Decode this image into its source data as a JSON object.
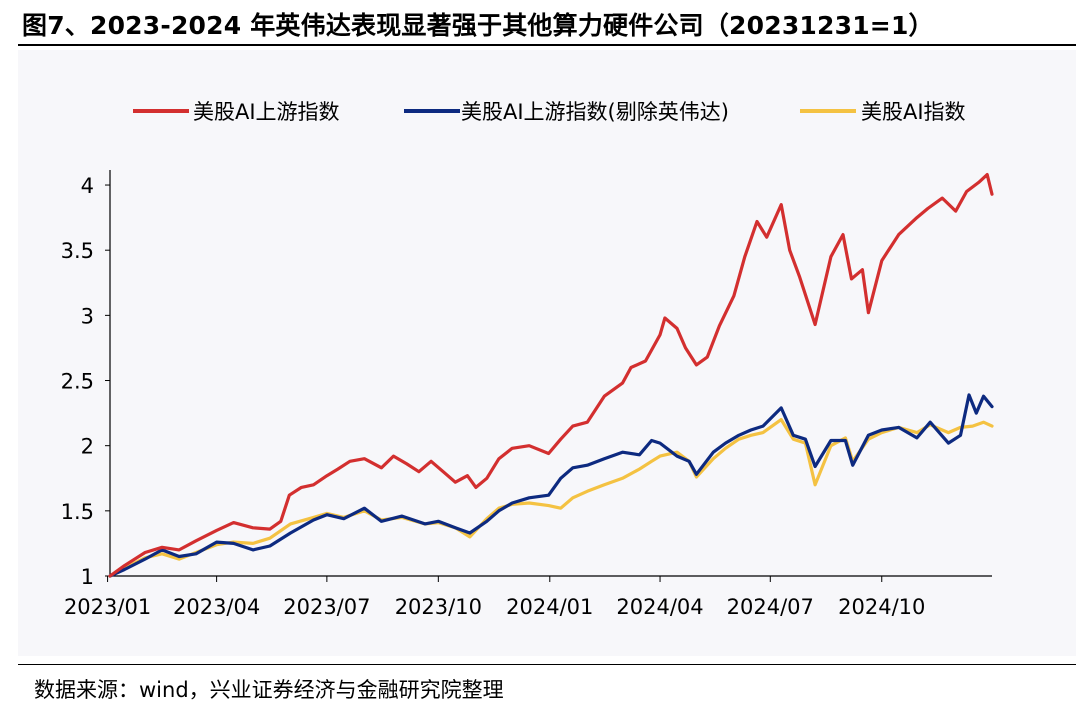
{
  "title": "图7、2023-2024 年英伟达表现显著强于其他算力硬件公司（20231231=1）",
  "source": "数据来源：wind，兴业证券经济与金融研究院整理",
  "chart_data": {
    "type": "line",
    "x_ticks": [
      "2023/01",
      "2023/04",
      "2023/07",
      "2023/10",
      "2024/01",
      "2024/04",
      "2024/07",
      "2024/10"
    ],
    "y_ticks": [
      "1",
      "1.5",
      "2",
      "2.5",
      "3",
      "3.5",
      "4"
    ],
    "ylim": [
      1,
      4.1
    ],
    "xlim": [
      "2023-01-03",
      "2024-12-31"
    ],
    "grid": false,
    "legend_position": "top",
    "series": [
      {
        "name": "美股AI上游指数",
        "color": "#d32f2f",
        "points": [
          [
            "2023-01-03",
            1.0
          ],
          [
            "2023-01-15",
            1.08
          ],
          [
            "2023-02-01",
            1.18
          ],
          [
            "2023-02-15",
            1.22
          ],
          [
            "2023-03-01",
            1.2
          ],
          [
            "2023-03-15",
            1.27
          ],
          [
            "2023-04-01",
            1.35
          ],
          [
            "2023-04-15",
            1.41
          ],
          [
            "2023-05-01",
            1.37
          ],
          [
            "2023-05-15",
            1.36
          ],
          [
            "2023-05-24",
            1.42
          ],
          [
            "2023-05-31",
            1.62
          ],
          [
            "2023-06-10",
            1.68
          ],
          [
            "2023-06-20",
            1.7
          ],
          [
            "2023-07-01",
            1.77
          ],
          [
            "2023-07-10",
            1.82
          ],
          [
            "2023-07-20",
            1.88
          ],
          [
            "2023-08-01",
            1.9
          ],
          [
            "2023-08-15",
            1.83
          ],
          [
            "2023-08-25",
            1.92
          ],
          [
            "2023-09-05",
            1.86
          ],
          [
            "2023-09-15",
            1.8
          ],
          [
            "2023-09-25",
            1.88
          ],
          [
            "2023-10-05",
            1.8
          ],
          [
            "2023-10-15",
            1.72
          ],
          [
            "2023-10-25",
            1.77
          ],
          [
            "2023-11-01",
            1.68
          ],
          [
            "2023-11-10",
            1.75
          ],
          [
            "2023-11-20",
            1.9
          ],
          [
            "2023-12-01",
            1.98
          ],
          [
            "2023-12-15",
            2.0
          ],
          [
            "2023-12-31",
            1.94
          ],
          [
            "2024-01-10",
            2.05
          ],
          [
            "2024-01-20",
            2.15
          ],
          [
            "2024-02-01",
            2.18
          ],
          [
            "2024-02-15",
            2.38
          ],
          [
            "2024-03-01",
            2.48
          ],
          [
            "2024-03-08",
            2.6
          ],
          [
            "2024-03-20",
            2.65
          ],
          [
            "2024-04-01",
            2.85
          ],
          [
            "2024-04-05",
            2.98
          ],
          [
            "2024-04-15",
            2.9
          ],
          [
            "2024-04-22",
            2.75
          ],
          [
            "2024-05-01",
            2.62
          ],
          [
            "2024-05-10",
            2.68
          ],
          [
            "2024-05-20",
            2.92
          ],
          [
            "2024-06-01",
            3.15
          ],
          [
            "2024-06-10",
            3.45
          ],
          [
            "2024-06-20",
            3.72
          ],
          [
            "2024-06-28",
            3.6
          ],
          [
            "2024-07-10",
            3.85
          ],
          [
            "2024-07-17",
            3.5
          ],
          [
            "2024-07-25",
            3.3
          ],
          [
            "2024-08-07",
            2.93
          ],
          [
            "2024-08-20",
            3.45
          ],
          [
            "2024-08-30",
            3.62
          ],
          [
            "2024-09-06",
            3.28
          ],
          [
            "2024-09-15",
            3.35
          ],
          [
            "2024-09-20",
            3.02
          ],
          [
            "2024-10-01",
            3.42
          ],
          [
            "2024-10-15",
            3.62
          ],
          [
            "2024-10-30",
            3.75
          ],
          [
            "2024-11-08",
            3.82
          ],
          [
            "2024-11-20",
            3.9
          ],
          [
            "2024-12-01",
            3.8
          ],
          [
            "2024-12-10",
            3.95
          ],
          [
            "2024-12-20",
            4.02
          ],
          [
            "2024-12-27",
            4.08
          ],
          [
            "2024-12-31",
            3.93
          ]
        ]
      },
      {
        "name": "美股AI上游指数(剔除英伟达)",
        "color": "#0d2a80",
        "points": [
          [
            "2023-01-03",
            1.0
          ],
          [
            "2023-01-15",
            1.05
          ],
          [
            "2023-02-01",
            1.13
          ],
          [
            "2023-02-15",
            1.2
          ],
          [
            "2023-03-01",
            1.15
          ],
          [
            "2023-03-15",
            1.17
          ],
          [
            "2023-04-01",
            1.26
          ],
          [
            "2023-04-15",
            1.25
          ],
          [
            "2023-05-01",
            1.2
          ],
          [
            "2023-05-15",
            1.23
          ],
          [
            "2023-06-01",
            1.33
          ],
          [
            "2023-06-20",
            1.43
          ],
          [
            "2023-07-01",
            1.47
          ],
          [
            "2023-07-15",
            1.44
          ],
          [
            "2023-08-01",
            1.52
          ],
          [
            "2023-08-15",
            1.42
          ],
          [
            "2023-09-01",
            1.46
          ],
          [
            "2023-09-20",
            1.4
          ],
          [
            "2023-10-01",
            1.42
          ],
          [
            "2023-10-15",
            1.37
          ],
          [
            "2023-10-27",
            1.33
          ],
          [
            "2023-11-10",
            1.42
          ],
          [
            "2023-11-20",
            1.5
          ],
          [
            "2023-12-01",
            1.56
          ],
          [
            "2023-12-15",
            1.6
          ],
          [
            "2023-12-31",
            1.62
          ],
          [
            "2024-01-10",
            1.75
          ],
          [
            "2024-01-20",
            1.83
          ],
          [
            "2024-02-01",
            1.85
          ],
          [
            "2024-02-15",
            1.9
          ],
          [
            "2024-03-01",
            1.95
          ],
          [
            "2024-03-15",
            1.93
          ],
          [
            "2024-03-25",
            2.04
          ],
          [
            "2024-04-01",
            2.02
          ],
          [
            "2024-04-15",
            1.92
          ],
          [
            "2024-04-25",
            1.88
          ],
          [
            "2024-05-01",
            1.78
          ],
          [
            "2024-05-15",
            1.95
          ],
          [
            "2024-05-25",
            2.02
          ],
          [
            "2024-06-05",
            2.08
          ],
          [
            "2024-06-15",
            2.12
          ],
          [
            "2024-06-25",
            2.15
          ],
          [
            "2024-07-10",
            2.29
          ],
          [
            "2024-07-20",
            2.08
          ],
          [
            "2024-07-30",
            2.05
          ],
          [
            "2024-08-07",
            1.84
          ],
          [
            "2024-08-20",
            2.04
          ],
          [
            "2024-09-01",
            2.04
          ],
          [
            "2024-09-07",
            1.85
          ],
          [
            "2024-09-20",
            2.08
          ],
          [
            "2024-10-01",
            2.12
          ],
          [
            "2024-10-15",
            2.14
          ],
          [
            "2024-10-30",
            2.06
          ],
          [
            "2024-11-10",
            2.18
          ],
          [
            "2024-11-25",
            2.02
          ],
          [
            "2024-12-05",
            2.08
          ],
          [
            "2024-12-12",
            2.39
          ],
          [
            "2024-12-18",
            2.25
          ],
          [
            "2024-12-24",
            2.38
          ],
          [
            "2024-12-31",
            2.3
          ]
        ]
      },
      {
        "name": "美股AI指数",
        "color": "#f4c242",
        "points": [
          [
            "2023-01-03",
            1.0
          ],
          [
            "2023-01-15",
            1.06
          ],
          [
            "2023-02-01",
            1.14
          ],
          [
            "2023-02-15",
            1.17
          ],
          [
            "2023-03-01",
            1.13
          ],
          [
            "2023-03-15",
            1.18
          ],
          [
            "2023-04-01",
            1.24
          ],
          [
            "2023-04-15",
            1.26
          ],
          [
            "2023-05-01",
            1.25
          ],
          [
            "2023-05-15",
            1.29
          ],
          [
            "2023-06-01",
            1.4
          ],
          [
            "2023-06-20",
            1.45
          ],
          [
            "2023-07-01",
            1.48
          ],
          [
            "2023-07-15",
            1.45
          ],
          [
            "2023-08-01",
            1.5
          ],
          [
            "2023-08-15",
            1.43
          ],
          [
            "2023-09-01",
            1.45
          ],
          [
            "2023-09-20",
            1.4
          ],
          [
            "2023-10-01",
            1.41
          ],
          [
            "2023-10-15",
            1.37
          ],
          [
            "2023-10-27",
            1.3
          ],
          [
            "2023-11-10",
            1.44
          ],
          [
            "2023-11-20",
            1.52
          ],
          [
            "2023-12-01",
            1.55
          ],
          [
            "2023-12-15",
            1.56
          ],
          [
            "2023-12-31",
            1.54
          ],
          [
            "2024-01-10",
            1.52
          ],
          [
            "2024-01-20",
            1.6
          ],
          [
            "2024-02-01",
            1.65
          ],
          [
            "2024-02-15",
            1.7
          ],
          [
            "2024-03-01",
            1.75
          ],
          [
            "2024-03-15",
            1.82
          ],
          [
            "2024-03-25",
            1.88
          ],
          [
            "2024-04-01",
            1.92
          ],
          [
            "2024-04-15",
            1.95
          ],
          [
            "2024-04-25",
            1.88
          ],
          [
            "2024-05-01",
            1.76
          ],
          [
            "2024-05-15",
            1.9
          ],
          [
            "2024-05-25",
            1.98
          ],
          [
            "2024-06-05",
            2.05
          ],
          [
            "2024-06-15",
            2.08
          ],
          [
            "2024-06-25",
            2.1
          ],
          [
            "2024-07-10",
            2.2
          ],
          [
            "2024-07-20",
            2.05
          ],
          [
            "2024-07-30",
            2.02
          ],
          [
            "2024-08-07",
            1.7
          ],
          [
            "2024-08-20",
            2.0
          ],
          [
            "2024-09-01",
            2.06
          ],
          [
            "2024-09-07",
            1.88
          ],
          [
            "2024-09-20",
            2.05
          ],
          [
            "2024-10-01",
            2.1
          ],
          [
            "2024-10-15",
            2.14
          ],
          [
            "2024-10-30",
            2.1
          ],
          [
            "2024-11-10",
            2.16
          ],
          [
            "2024-11-25",
            2.1
          ],
          [
            "2024-12-05",
            2.14
          ],
          [
            "2024-12-15",
            2.15
          ],
          [
            "2024-12-24",
            2.18
          ],
          [
            "2024-12-31",
            2.15
          ]
        ]
      }
    ]
  }
}
